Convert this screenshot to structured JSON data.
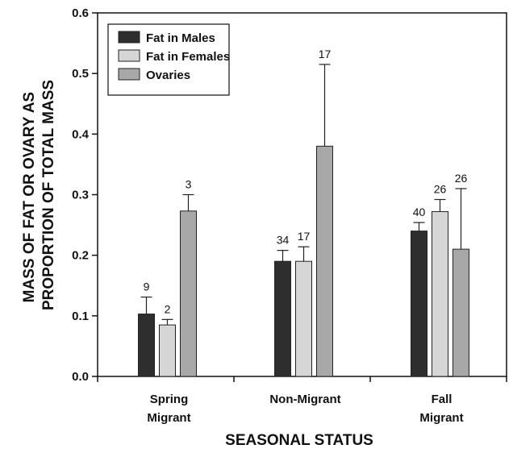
{
  "chart_data": {
    "type": "bar",
    "title": "",
    "xlabel": "SEASONAL STATUS",
    "ylabel_lines": [
      "MASS OF FAT OR OVARY AS",
      "PROPORTION OF TOTAL MASS"
    ],
    "categories": [
      [
        "Spring",
        "Migrant"
      ],
      [
        "Non-Migrant"
      ],
      [
        "Fall",
        "Migrant"
      ]
    ],
    "ylim": [
      0,
      0.6
    ],
    "yticks": [
      "0.0",
      "0.1",
      "0.2",
      "0.3",
      "0.4",
      "0.5",
      "0.6"
    ],
    "grid": false,
    "legend_position": "top-left",
    "series": [
      {
        "name": "Fat in Males",
        "color": "#2e2e2e",
        "values": [
          0.103,
          0.19,
          0.24
        ],
        "errors": [
          0.028,
          0.018,
          0.014
        ],
        "counts": [
          "9",
          "34",
          "40"
        ]
      },
      {
        "name": "Fat in Females",
        "color": "#d6d6d6",
        "values": [
          0.085,
          0.19,
          0.272
        ],
        "errors": [
          0.009,
          0.024,
          0.02
        ],
        "counts": [
          "2",
          "17",
          "26"
        ]
      },
      {
        "name": "Ovaries",
        "color": "#a8a8a8",
        "values": [
          0.273,
          0.38,
          0.21
        ],
        "errors": [
          0.027,
          0.135,
          0.1
        ],
        "counts": [
          "3",
          "17",
          "26"
        ]
      }
    ]
  }
}
